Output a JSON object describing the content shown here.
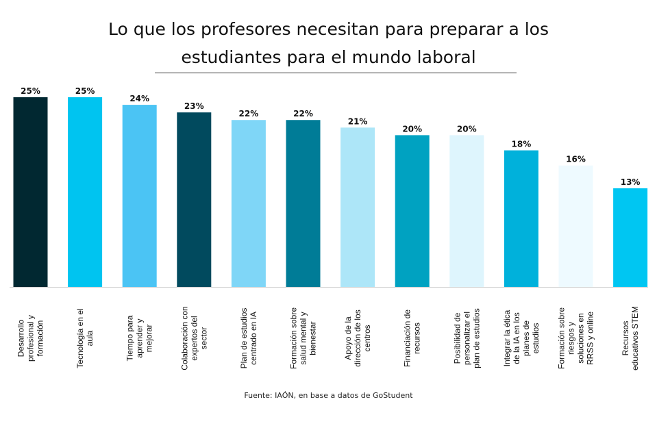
{
  "chart_data": {
    "type": "bar",
    "title_lines": [
      "Lo que los profesores necesitan para preparar a los",
      "estudiantes para el mundo laboral"
    ],
    "categories": [
      [
        "Desarrollo",
        "profesional y",
        "formación"
      ],
      [
        "Tecnología en el",
        "aula"
      ],
      [
        "Tiempo para",
        "aprender y",
        "mejorar"
      ],
      [
        "Colaboración con",
        "expertos del",
        "sector"
      ],
      [
        "Plan de estudios",
        "centrado en IA"
      ],
      [
        "Formación sobre",
        "salud mental y",
        "bienestar"
      ],
      [
        "Apoyo de la",
        "dirección de los",
        "centros"
      ],
      [
        "Financiación de",
        "recursos"
      ],
      [
        "Posibilidad de",
        "personalizar el",
        "plan de estudios"
      ],
      [
        "Integrar la ética",
        "de la IA en los",
        "planes de",
        "estudios"
      ],
      [
        "Formación sobre",
        "riesgos y",
        "soluciones en",
        "RRSS y online"
      ],
      [
        "Recursos",
        "educativos STEM"
      ]
    ],
    "values": [
      25,
      25,
      24,
      23,
      22,
      22,
      21,
      20,
      20,
      18,
      16,
      13
    ],
    "value_labels": [
      "25%",
      "25%",
      "24%",
      "23%",
      "22%",
      "22%",
      "21%",
      "20%",
      "20%",
      "18%",
      "16%",
      "13%"
    ],
    "colors": [
      "#012831",
      "#00c4f0",
      "#4bc4f4",
      "#014a5e",
      "#7fd6f7",
      "#007c97",
      "#ade6f8",
      "#00a2c1",
      "#def5fd",
      "#00b1db",
      "#eefaff",
      "#00c6f2"
    ],
    "ylim": [
      0,
      25
    ],
    "grid": false,
    "legend": "none"
  },
  "source": "Fuente: IAÓN, en base a datos de GoStudent"
}
